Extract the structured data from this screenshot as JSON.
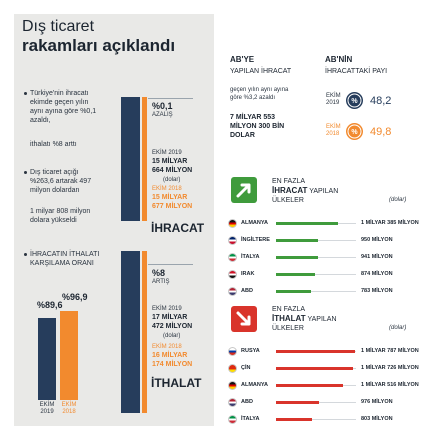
{
  "title": {
    "line1": "Dış ticaret",
    "line2": "rakamları açıklandı"
  },
  "bullets": [
    "Türkiye'nin ihracatı ekimde geçen yılın aynı ayına göre %0,1 azaldı,",
    "ithalatı %8 arttı",
    "Dış ticaret açığı %263,6 artarak 497 milyon dolardan",
    "1 milyar 808 milyon dolara yükseldi",
    "İHRACATIN İTHALATI KARŞILAMA ORANI"
  ],
  "exports": {
    "change": "%0,1",
    "change_label": "AZALIŞ",
    "y2019_label": "EKİM 2019",
    "y2019_value_1": "15 MİLYAR",
    "y2019_value_2": "664 MİLYON",
    "unit": "(dolar)",
    "y2018_label": "EKİM 2018",
    "y2018_value_1": "15 MİLYAR",
    "y2018_value_2": "677 MİLYON",
    "heading": "İHRACAT"
  },
  "imports": {
    "change": "%8",
    "change_label": "ARTIŞ",
    "y2019_label": "EKİM 2019",
    "y2019_value_1": "17 MİLYAR",
    "y2019_value_2": "472 MİLYON",
    "unit": "(dolar)",
    "y2018_label": "EKİM 2018",
    "y2018_value_1": "16 MİLYAR",
    "y2018_value_2": "174 MİLYON",
    "heading": "İTHALAT"
  },
  "coverage": {
    "y2019": {
      "label": "EKİM 2019",
      "value": "%89,6",
      "percent": 89.6
    },
    "y2018": {
      "label": "EKİM 2018",
      "value": "%96,9",
      "percent": 96.9
    }
  },
  "eu": {
    "exports": {
      "title1": "AB'YE",
      "title2": "YAPILAN İHRACAT",
      "note1": "geçen yılın aynı ayına",
      "note2": "göre %3,2 azaldı",
      "value1": "7 MİLYAR 553",
      "value2": "MİLYON 300 BİN",
      "value3": "DOLAR"
    },
    "share": {
      "title1": "AB'NİN",
      "title2": "İHRACATTAKİ PAYI",
      "y2019": {
        "label": "EKİM 2019",
        "value": "48,2"
      },
      "y2018": {
        "label": "EKİM 2018",
        "value": "49,8"
      }
    }
  },
  "top_exports": {
    "title1": "EN FAZLA",
    "title2a": "İHRACAT",
    "title2b": "YAPILAN",
    "title3": "ÜLKELER",
    "unit": "(dolar)",
    "bar_color": "#3f9b3c",
    "items": [
      {
        "country": "ALMANYA",
        "value": "1 MİLYAR 385 MİLYON",
        "amount": 1385,
        "flag": [
          "#111111",
          "#dd0000",
          "#ffce00"
        ]
      },
      {
        "country": "İNGİLTERE",
        "value": "950 MİLYON",
        "amount": 950,
        "flag": [
          "#012169",
          "#ffffff",
          "#c8102e"
        ]
      },
      {
        "country": "İTALYA",
        "value": "941 MİLYON",
        "amount": 941,
        "flag": [
          "#009246",
          "#ffffff",
          "#ce2b37"
        ]
      },
      {
        "country": "IRAK",
        "value": "874 MİLYON",
        "amount": 874,
        "flag": [
          "#ce1126",
          "#ffffff",
          "#111111"
        ]
      },
      {
        "country": "ABD",
        "value": "783 MİLYON",
        "amount": 783,
        "flag": [
          "#b22234",
          "#ffffff",
          "#3c3b6e"
        ]
      }
    ]
  },
  "top_imports": {
    "title1": "EN FAZLA",
    "title2a": "İTHALAT",
    "title2b": "YAPILAN",
    "title3": "ÜLKELER",
    "unit": "(dolar)",
    "bar_color": "#d9342b",
    "items": [
      {
        "country": "RUSYA",
        "value": "1 MİLYAR 787 MİLYON",
        "amount": 1787,
        "flag": [
          "#ffffff",
          "#0039a6",
          "#d52b1e"
        ]
      },
      {
        "country": "ÇİN",
        "value": "1 MİLYAR 726 MİLYON",
        "amount": 1726,
        "flag": [
          "#de2910",
          "#de2910",
          "#ffde00"
        ]
      },
      {
        "country": "ALMANYA",
        "value": "1 MİLYAR 516 MİLYON",
        "amount": 1516,
        "flag": [
          "#111111",
          "#dd0000",
          "#ffce00"
        ]
      },
      {
        "country": "ABD",
        "value": "976 MİLYON",
        "amount": 976,
        "flag": [
          "#b22234",
          "#ffffff",
          "#3c3b6e"
        ]
      },
      {
        "country": "İTALYA",
        "value": "803 MİLYON",
        "amount": 803,
        "flag": [
          "#009246",
          "#ffffff",
          "#ce2b37"
        ]
      }
    ]
  }
}
